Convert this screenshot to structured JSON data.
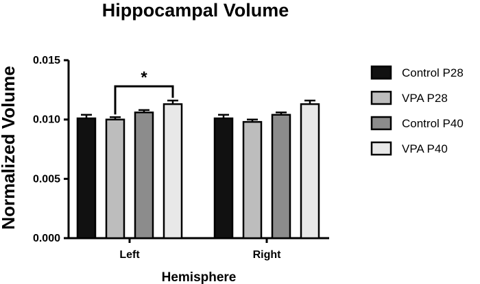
{
  "chart_data": {
    "type": "bar",
    "title": "Hippocampal Volume",
    "xlabel": "Hemisphere",
    "ylabel": "Normalized Volume",
    "categories": [
      "Left",
      "Right"
    ],
    "ylim": [
      0,
      0.015
    ],
    "yticks": [
      "0.000",
      "0.005",
      "0.010",
      "0.015"
    ],
    "legend_position": "right",
    "series": [
      {
        "name": "Control P28",
        "color": "#111111",
        "values": [
          0.0101,
          0.0101
        ],
        "errors": [
          0.0003,
          0.0003
        ]
      },
      {
        "name": "VPA P28",
        "color": "#bdbdbd",
        "values": [
          0.01,
          0.0098
        ],
        "errors": [
          0.0002,
          0.0002
        ]
      },
      {
        "name": "Control P40",
        "color": "#8c8c8c",
        "values": [
          0.0106,
          0.0104
        ],
        "errors": [
          0.0002,
          0.0002
        ]
      },
      {
        "name": "VPA P40",
        "color": "#e8e8e8",
        "values": [
          0.0113,
          0.0113
        ],
        "errors": [
          0.0003,
          0.0003
        ]
      }
    ],
    "annotations": [
      {
        "text": "*",
        "category": "Left",
        "from_series": 1,
        "to_series": 3,
        "level": 0.0128
      }
    ],
    "grid": false
  }
}
